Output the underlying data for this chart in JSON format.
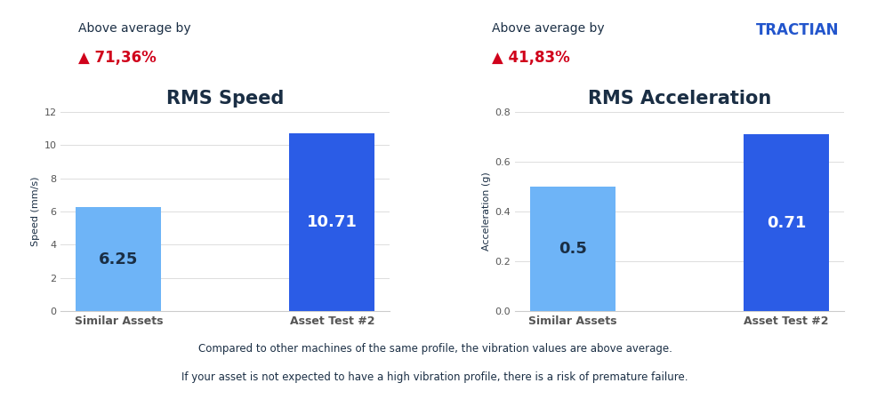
{
  "chart1_title": "RMS Speed",
  "chart1_ylabel": "Speed (mm/s)",
  "chart1_categories": [
    "Similar Assets",
    "Asset Test #2"
  ],
  "chart1_values": [
    6.25,
    10.71
  ],
  "chart1_colors": [
    "#6EB4F7",
    "#2B5CE6"
  ],
  "chart1_ylim": [
    0,
    12
  ],
  "chart1_yticks": [
    0,
    2,
    4,
    6,
    8,
    10,
    12
  ],
  "chart1_label1_color": "#1a2e44",
  "chart1_label2_color": "#ffffff",
  "chart1_above_text": "Above average by",
  "chart1_pct_text": "▲ 71,36%",
  "chart1_pct_color": "#d0021b",
  "chart2_title": "RMS Acceleration",
  "chart2_ylabel": "Acceleration (g)",
  "chart2_categories": [
    "Similar Assets",
    "Asset Test #2"
  ],
  "chart2_values": [
    0.5,
    0.71
  ],
  "chart2_colors": [
    "#6EB4F7",
    "#2B5CE6"
  ],
  "chart2_ylim": [
    0,
    0.8
  ],
  "chart2_yticks": [
    0,
    0.2,
    0.4,
    0.6,
    0.8
  ],
  "chart2_label1_color": "#1a2e44",
  "chart2_label2_color": "#ffffff",
  "chart2_above_text": "Above average by",
  "chart2_pct_text": "▲ 41,83%",
  "chart2_pct_color": "#d0021b",
  "tractian_text": "TRACTIAN",
  "tractian_color": "#2255CC",
  "footer_line1": "Compared to other machines of the same profile, the vibration values are above average.",
  "footer_line2": "If your asset is not expected to have a high vibration profile, there is a risk of premature failure.",
  "footer_color": "#1a2e44",
  "background_color": "#ffffff",
  "title_color": "#1a2e44",
  "axis_label_color": "#1a2e44",
  "tick_color": "#555555",
  "grid_color": "#dddddd",
  "bar_label_fontsize": 13,
  "title_fontsize": 15,
  "above_text_fontsize": 10,
  "pct_fontsize": 12,
  "ylabel_fontsize": 8,
  "xtick_fontsize": 9,
  "ytick_fontsize": 8,
  "footer_fontsize": 8.5
}
